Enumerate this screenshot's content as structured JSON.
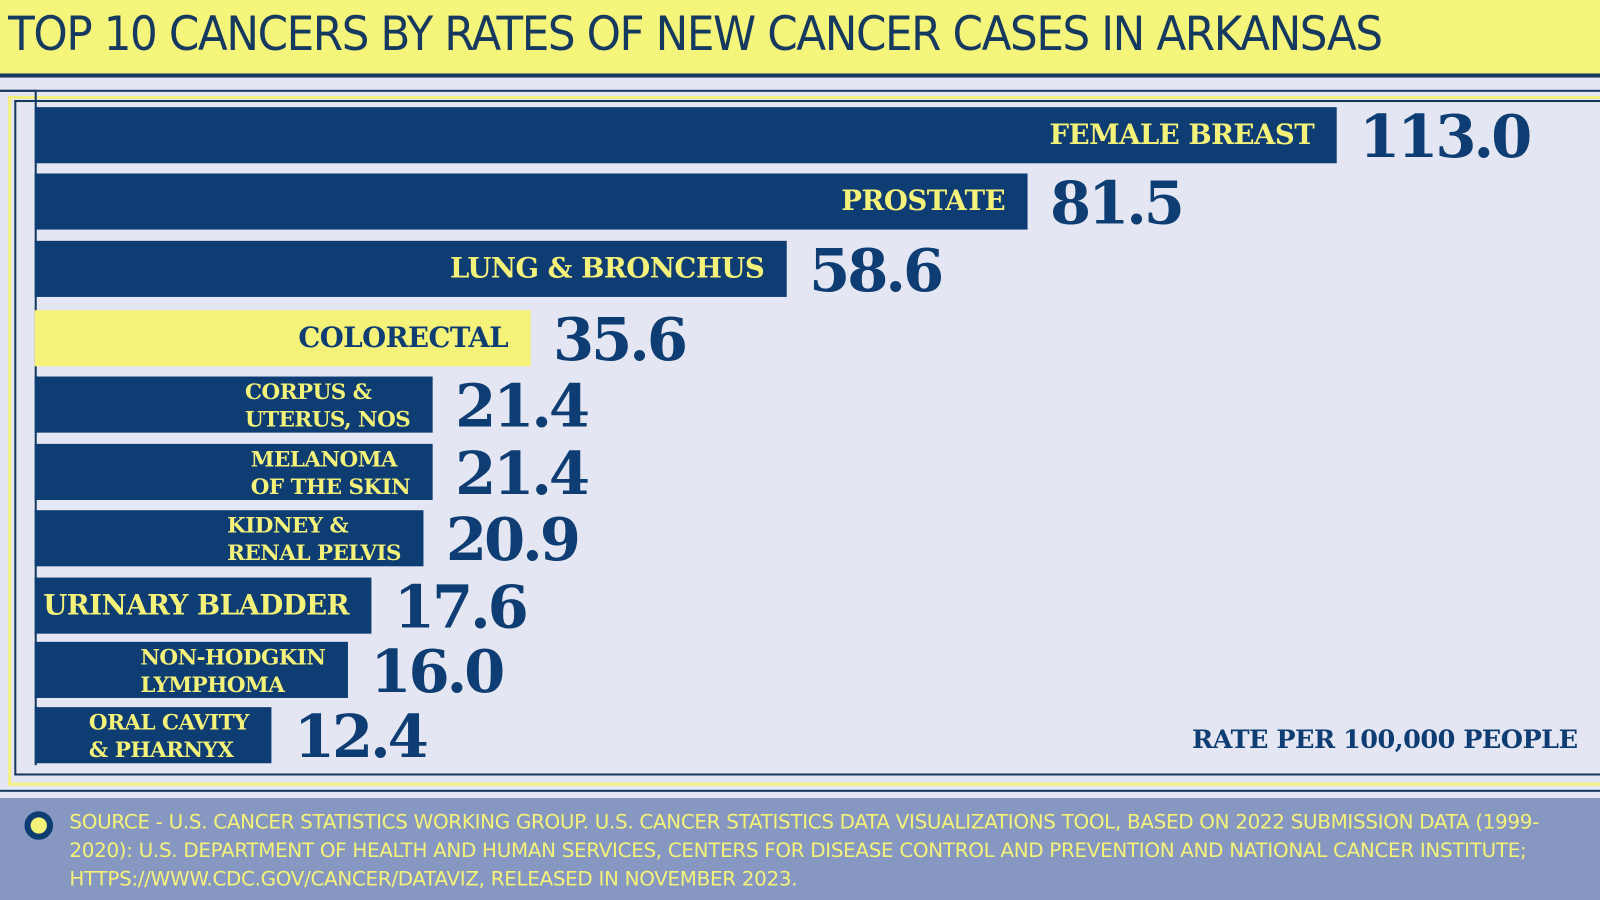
{
  "title": "TOP 10 CANCERS BY RATES OF NEW CANCER CASES IN ARKANSAS",
  "colors": {
    "bar": "#0d3d73",
    "highlight": "#f5f27a",
    "background": "#e4e7f3",
    "footer": "#8698c1"
  },
  "chart_data": {
    "type": "bar",
    "orientation": "horizontal",
    "title": "TOP 10 CANCERS BY RATES OF NEW CANCER CASES IN ARKANSAS",
    "unit_label": "RATE PER 100,000 PEOPLE",
    "highlighted": "COLORECTAL",
    "categories": [
      "FEMALE BREAST",
      "PROSTATE",
      "LUNG & BRONCHUS",
      "COLORECTAL",
      "CORPUS &\nUTERUS, NOS",
      "MELANOMA\nOF THE SKIN",
      "KIDNEY &\nRENAL PELVIS",
      "URINARY BLADDER",
      "NON-HODGKIN\nLYMPHOMA",
      "ORAL CAVITY\n& PHARNYX"
    ],
    "values": [
      113.0,
      81.5,
      58.6,
      35.6,
      21.4,
      21.4,
      20.9,
      17.6,
      16.0,
      12.4
    ],
    "value_labels": [
      "113.0",
      "81.5",
      "58.6",
      "35.6",
      "21.4",
      "21.4",
      "20.9",
      "17.6",
      "16.0",
      "12.4"
    ]
  },
  "footer": {
    "source": "SOURCE - U.S. CANCER STATISTICS WORKING GROUP. U.S. CANCER STATISTICS DATA VISUALIZATIONS TOOL, BASED ON 2022 SUBMISSION DATA (1999-2020): U.S. DEPARTMENT OF HEALTH AND HUMAN SERVICES, CENTERS FOR DISEASE CONTROL AND PREVENTION AND NATIONAL CANCER INSTITUTE; HTTPS://WWW.CDC.GOV/CANCER/DATAVIZ, RELEASED IN NOVEMBER 2023."
  }
}
